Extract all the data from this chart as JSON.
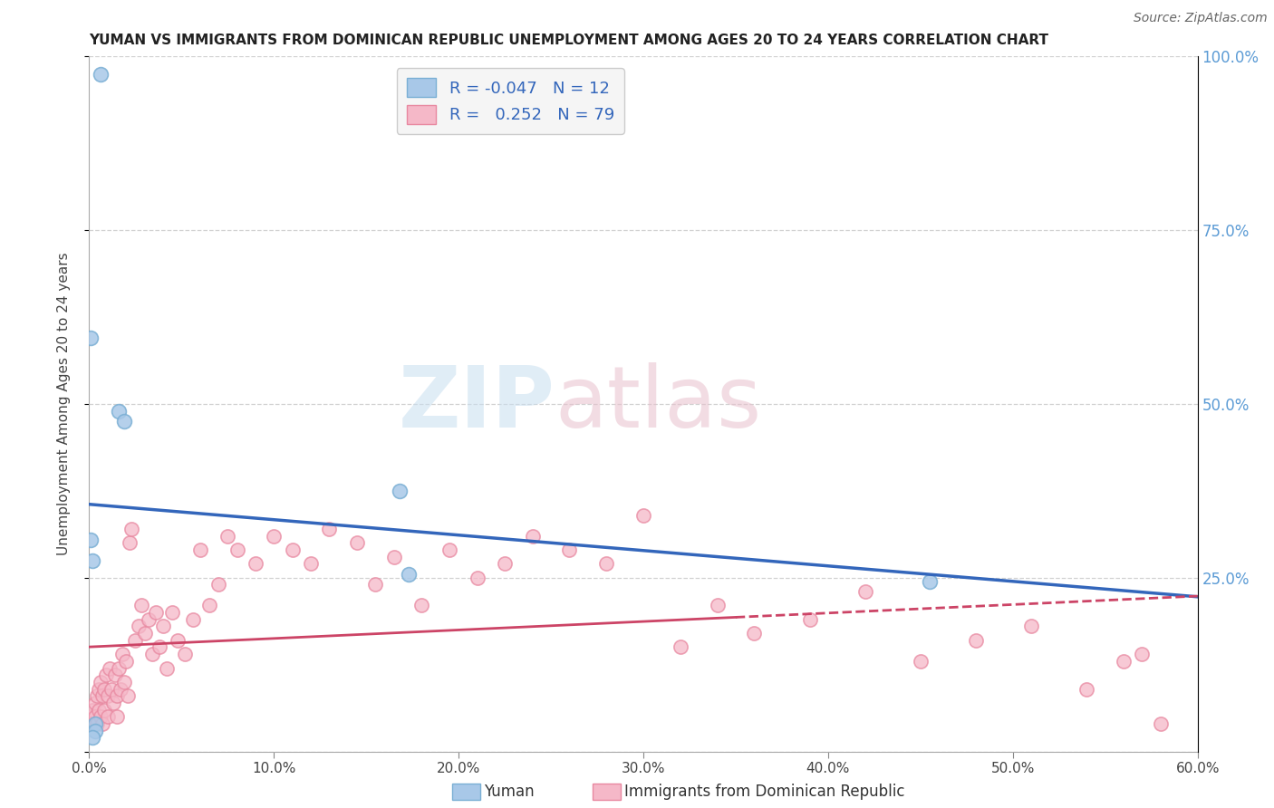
{
  "title": "YUMAN VS IMMIGRANTS FROM DOMINICAN REPUBLIC UNEMPLOYMENT AMONG AGES 20 TO 24 YEARS CORRELATION CHART",
  "source": "Source: ZipAtlas.com",
  "ylabel": "Unemployment Among Ages 20 to 24 years",
  "xlim": [
    0.0,
    0.6
  ],
  "ylim": [
    0.0,
    1.0
  ],
  "legend_r_values": [
    "-0.047",
    "0.252"
  ],
  "legend_n_values": [
    "12",
    "79"
  ],
  "blue_color": "#a8c8e8",
  "blue_edge_color": "#7aafd4",
  "blue_line_color": "#3366bb",
  "pink_color": "#f5b8c8",
  "pink_edge_color": "#e888a0",
  "pink_line_color": "#cc4466",
  "blue_scatter_x": [
    0.006,
    0.001,
    0.016,
    0.019,
    0.001,
    0.002,
    0.003,
    0.168,
    0.173,
    0.003,
    0.002,
    0.455
  ],
  "blue_scatter_y": [
    0.975,
    0.595,
    0.49,
    0.475,
    0.305,
    0.275,
    0.04,
    0.375,
    0.255,
    0.03,
    0.02,
    0.245
  ],
  "pink_scatter_x": [
    0.001,
    0.002,
    0.002,
    0.003,
    0.003,
    0.004,
    0.004,
    0.005,
    0.005,
    0.006,
    0.006,
    0.007,
    0.007,
    0.008,
    0.008,
    0.009,
    0.01,
    0.01,
    0.011,
    0.012,
    0.013,
    0.014,
    0.015,
    0.015,
    0.016,
    0.017,
    0.018,
    0.019,
    0.02,
    0.021,
    0.022,
    0.023,
    0.025,
    0.027,
    0.028,
    0.03,
    0.032,
    0.034,
    0.036,
    0.038,
    0.04,
    0.042,
    0.045,
    0.048,
    0.052,
    0.056,
    0.06,
    0.065,
    0.07,
    0.075,
    0.08,
    0.09,
    0.1,
    0.11,
    0.12,
    0.13,
    0.145,
    0.155,
    0.165,
    0.18,
    0.195,
    0.21,
    0.225,
    0.24,
    0.26,
    0.28,
    0.3,
    0.32,
    0.34,
    0.36,
    0.39,
    0.42,
    0.45,
    0.48,
    0.51,
    0.54,
    0.56,
    0.57,
    0.58
  ],
  "pink_scatter_y": [
    0.05,
    0.06,
    0.04,
    0.07,
    0.05,
    0.08,
    0.04,
    0.09,
    0.06,
    0.1,
    0.05,
    0.08,
    0.04,
    0.09,
    0.06,
    0.11,
    0.08,
    0.05,
    0.12,
    0.09,
    0.07,
    0.11,
    0.08,
    0.05,
    0.12,
    0.09,
    0.14,
    0.1,
    0.13,
    0.08,
    0.3,
    0.32,
    0.16,
    0.18,
    0.21,
    0.17,
    0.19,
    0.14,
    0.2,
    0.15,
    0.18,
    0.12,
    0.2,
    0.16,
    0.14,
    0.19,
    0.29,
    0.21,
    0.24,
    0.31,
    0.29,
    0.27,
    0.31,
    0.29,
    0.27,
    0.32,
    0.3,
    0.24,
    0.28,
    0.21,
    0.29,
    0.25,
    0.27,
    0.31,
    0.29,
    0.27,
    0.34,
    0.15,
    0.21,
    0.17,
    0.19,
    0.23,
    0.13,
    0.16,
    0.18,
    0.09,
    0.13,
    0.14,
    0.04
  ],
  "background_color": "#ffffff",
  "grid_color": "#cccccc"
}
